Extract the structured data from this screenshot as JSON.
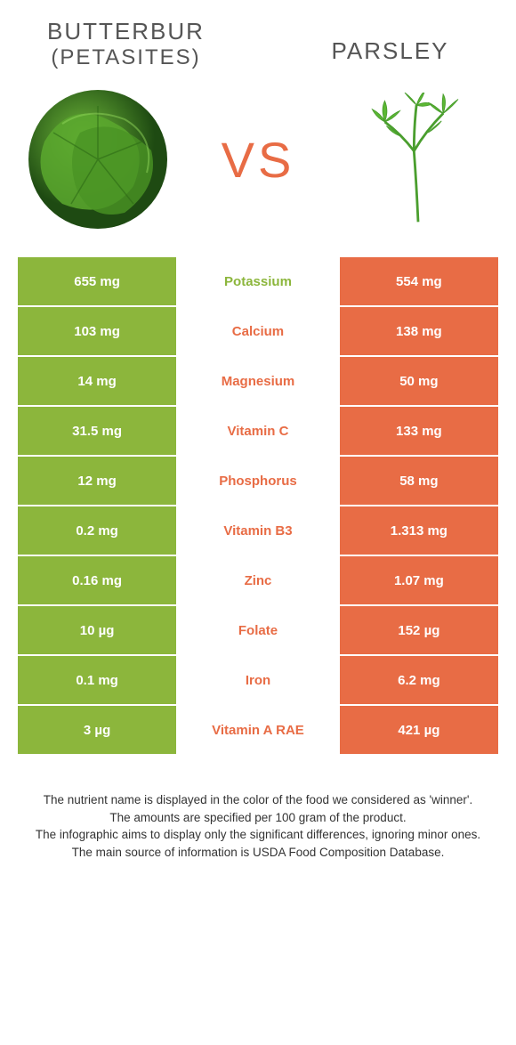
{
  "colors": {
    "green": "#8cb63c",
    "orange": "#e86c45",
    "vs": "#e86c45",
    "nutrient_green": "#8cb63c",
    "nutrient_orange": "#e86c45"
  },
  "header": {
    "left_title": "Butterbur",
    "left_subtitle": "(Petasites)",
    "right_title": "Parsley"
  },
  "vs_label": "VS",
  "nutrients": [
    {
      "name": "Potassium",
      "left": "655 mg",
      "right": "554 mg",
      "winner": "left"
    },
    {
      "name": "Calcium",
      "left": "103 mg",
      "right": "138 mg",
      "winner": "right"
    },
    {
      "name": "Magnesium",
      "left": "14 mg",
      "right": "50 mg",
      "winner": "right"
    },
    {
      "name": "Vitamin C",
      "left": "31.5 mg",
      "right": "133 mg",
      "winner": "right"
    },
    {
      "name": "Phosphorus",
      "left": "12 mg",
      "right": "58 mg",
      "winner": "right"
    },
    {
      "name": "Vitamin B3",
      "left": "0.2 mg",
      "right": "1.313 mg",
      "winner": "right"
    },
    {
      "name": "Zinc",
      "left": "0.16 mg",
      "right": "1.07 mg",
      "winner": "right"
    },
    {
      "name": "Folate",
      "left": "10 µg",
      "right": "152 µg",
      "winner": "right"
    },
    {
      "name": "Iron",
      "left": "0.1 mg",
      "right": "6.2 mg",
      "winner": "right"
    },
    {
      "name": "Vitamin A RAE",
      "left": "3 µg",
      "right": "421 µg",
      "winner": "right"
    }
  ],
  "footnotes": [
    "The nutrient name is displayed in the color of the food we considered as 'winner'.",
    "The amounts are specified per 100 gram of the product.",
    "The infographic aims to display only the significant differences, ignoring minor ones.",
    "The main source of information is USDA Food Composition Database."
  ]
}
